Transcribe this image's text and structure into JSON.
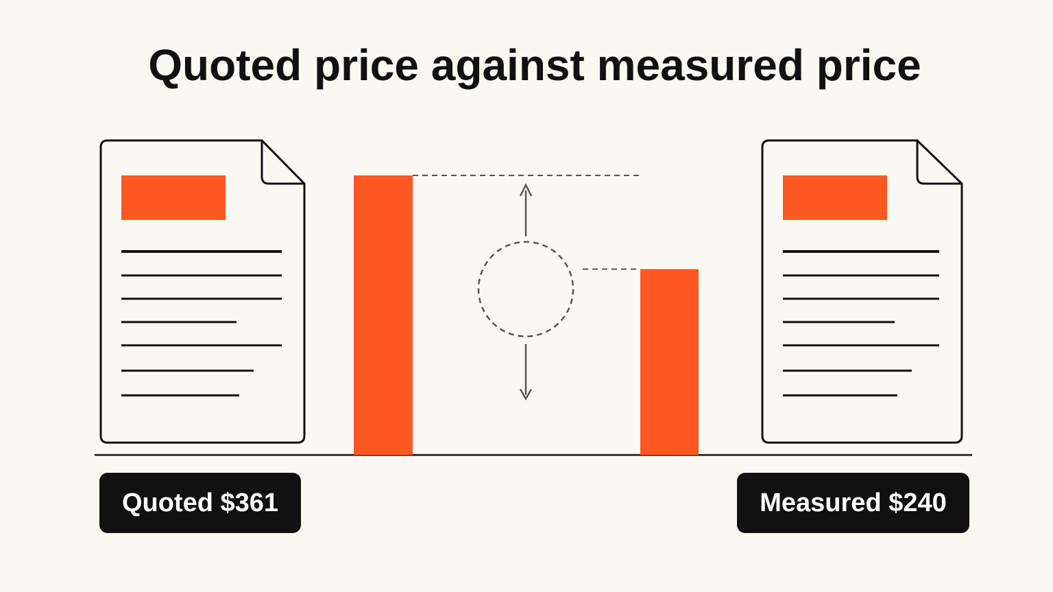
{
  "chart_data": {
    "type": "bar",
    "title": "Quoted price against measured price",
    "values": [
      361,
      240
    ],
    "value_labels": [
      "Quoted $361",
      "Measured $240"
    ],
    "color": "#ff5722"
  }
}
